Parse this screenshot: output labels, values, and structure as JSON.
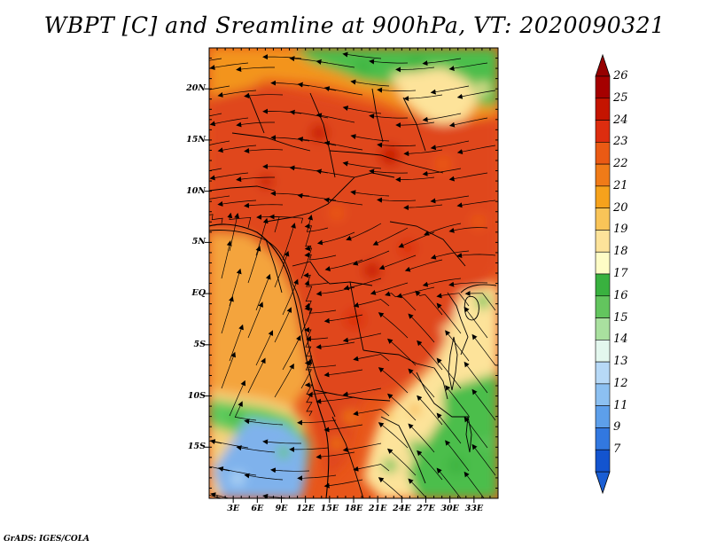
{
  "title": "WBPT [C] and Sreamline at 900hPa, VT: 2020090321",
  "credit": "GrADS: IGES/COLA",
  "map": {
    "lon_range": [
      0,
      36
    ],
    "lat_range": [
      -20,
      24
    ],
    "latitude_labels": [
      {
        "value": 20,
        "label": "20N"
      },
      {
        "value": 15,
        "label": "15N"
      },
      {
        "value": 10,
        "label": "10N"
      },
      {
        "value": 5,
        "label": "5N"
      },
      {
        "value": 0,
        "label": "EQ"
      },
      {
        "value": -5,
        "label": "5S"
      },
      {
        "value": -10,
        "label": "10S"
      },
      {
        "value": -15,
        "label": "15S"
      }
    ],
    "longitude_labels": [
      {
        "value": 3,
        "label": "3E"
      },
      {
        "value": 6,
        "label": "6E"
      },
      {
        "value": 9,
        "label": "9E"
      },
      {
        "value": 12,
        "label": "12E"
      },
      {
        "value": 15,
        "label": "15E"
      },
      {
        "value": 18,
        "label": "18E"
      },
      {
        "value": 21,
        "label": "21E"
      },
      {
        "value": 24,
        "label": "24E"
      },
      {
        "value": 27,
        "label": "27E"
      },
      {
        "value": 30,
        "label": "30E"
      },
      {
        "value": 33,
        "label": "33E"
      }
    ],
    "regions": [
      {
        "name": "north-orange",
        "level": 22,
        "color": "#f3941e"
      },
      {
        "name": "northeast-green",
        "level": 17,
        "color": "#4cbe4c"
      },
      {
        "name": "northeast-cream",
        "level": 19,
        "color": "#fde39a"
      },
      {
        "name": "central-red",
        "level": 24,
        "color": "#e0461a"
      },
      {
        "name": "atlantic-orange",
        "level": 21,
        "color": "#f4a43c"
      },
      {
        "name": "southwest-cream",
        "level": 20,
        "color": "#f8d27a"
      },
      {
        "name": "southwest-green",
        "level": 17,
        "color": "#5fca5c"
      },
      {
        "name": "southwest-blue",
        "level": 13,
        "color": "#7fb2ec"
      },
      {
        "name": "southeast-cream",
        "level": 19,
        "color": "#fde39a"
      },
      {
        "name": "southeast-green",
        "level": 17,
        "color": "#4cbe4c"
      }
    ]
  },
  "colorbar": {
    "levels": [
      {
        "label": "26",
        "color": "#a50000"
      },
      {
        "label": "25",
        "color": "#c41400"
      },
      {
        "label": "24",
        "color": "#dd2d0f"
      },
      {
        "label": "23",
        "color": "#ea5a14"
      },
      {
        "label": "22",
        "color": "#f07b18"
      },
      {
        "label": "21",
        "color": "#f6a21c"
      },
      {
        "label": "20",
        "color": "#f9c458"
      },
      {
        "label": "19",
        "color": "#fde39a"
      },
      {
        "label": "18",
        "color": "#fefcc6"
      },
      {
        "label": "17",
        "color": "#39b13f"
      },
      {
        "label": "16",
        "color": "#63c55e"
      },
      {
        "label": "15",
        "color": "#a9e09f"
      },
      {
        "label": "14",
        "color": "#e3f7ee"
      },
      {
        "label": "13",
        "color": "#b7d9f7"
      },
      {
        "label": "12",
        "color": "#8cc0f1"
      },
      {
        "label": "11",
        "color": "#5d9fea"
      },
      {
        "label": "9",
        "color": "#3278e0"
      },
      {
        "label": "7",
        "color": "#1354cf"
      }
    ],
    "arrow_top_color": "#960000",
    "arrow_bottom_color": "#1a5ed4"
  }
}
